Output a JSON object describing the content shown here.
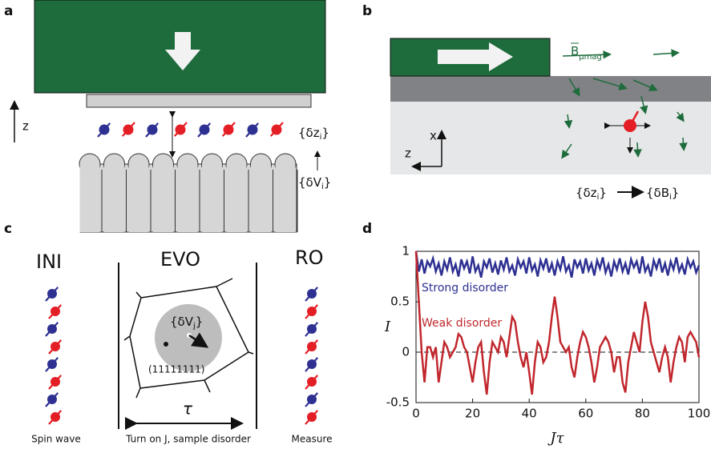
{
  "panels": {
    "a": {
      "letter": "a",
      "axis": "z",
      "dz": {
        "open": "{δz",
        "sub": "i",
        "close": "}"
      },
      "dv": {
        "open": "{δV",
        "sub": "i",
        "close": "}"
      }
    },
    "b": {
      "letter": "b",
      "field": {
        "main": "B",
        "sub": "μmag"
      },
      "axis_x": "x",
      "axis_z": "z",
      "map_from": {
        "open": "{δz",
        "sub": "i",
        "close": "}"
      },
      "map_to": {
        "open": "{δB",
        "sub": "i",
        "close": "}"
      }
    },
    "c": {
      "letter": "c",
      "ini": "INI",
      "evo": "EVO",
      "ro": "RO",
      "disorder": {
        "open": "{δV",
        "sub": "j",
        "close": "}"
      },
      "state": "(11111111)",
      "tau": "τ",
      "ini_caption": "Spin wave",
      "evo_caption": "Turn on J, sample disorder",
      "ro_caption": "Measure"
    },
    "d": {
      "letter": "d"
    }
  },
  "chart_data": {
    "type": "line",
    "xlabel": "Jτ",
    "ylabel": "I",
    "xlim": [
      0,
      100
    ],
    "ylim": [
      -0.5,
      1
    ],
    "xticks": [
      0,
      20,
      40,
      60,
      80,
      100
    ],
    "yticks": [
      -0.5,
      0,
      0.5,
      1
    ],
    "reference_line": 0,
    "x": [
      0,
      1,
      2,
      3,
      4,
      5,
      6,
      7,
      8,
      9,
      10,
      11,
      12,
      13,
      14,
      15,
      16,
      17,
      18,
      19,
      20,
      21,
      22,
      23,
      24,
      25,
      26,
      27,
      28,
      29,
      30,
      31,
      32,
      33,
      34,
      35,
      36,
      37,
      38,
      39,
      40,
      41,
      42,
      43,
      44,
      45,
      46,
      47,
      48,
      49,
      50,
      51,
      52,
      53,
      54,
      55,
      56,
      57,
      58,
      59,
      60,
      61,
      62,
      63,
      64,
      65,
      66,
      67,
      68,
      69,
      70,
      71,
      72,
      73,
      74,
      75,
      76,
      77,
      78,
      79,
      80,
      81,
      82,
      83,
      84,
      85,
      86,
      87,
      88,
      89,
      90,
      91,
      92,
      93,
      94,
      95,
      96,
      97,
      98,
      99,
      100
    ],
    "series": [
      {
        "name": "Strong disorder",
        "color": "#2e3192",
        "values": [
          1,
          0.8,
          0.92,
          0.78,
          0.9,
          0.85,
          0.93,
          0.8,
          0.88,
          0.76,
          0.9,
          0.82,
          0.94,
          0.8,
          0.87,
          0.75,
          0.92,
          0.83,
          0.9,
          0.78,
          0.95,
          0.8,
          0.86,
          0.74,
          0.9,
          0.84,
          0.93,
          0.79,
          0.88,
          0.77,
          0.91,
          0.82,
          0.94,
          0.8,
          0.86,
          0.76,
          0.92,
          0.84,
          0.9,
          0.78,
          0.94,
          0.81,
          0.87,
          0.75,
          0.91,
          0.83,
          0.93,
          0.79,
          0.88,
          0.76,
          0.9,
          0.82,
          0.95,
          0.8,
          0.86,
          0.74,
          0.92,
          0.84,
          0.9,
          0.78,
          0.93,
          0.81,
          0.88,
          0.76,
          0.91,
          0.83,
          0.94,
          0.79,
          0.87,
          0.75,
          0.9,
          0.82,
          0.93,
          0.8,
          0.88,
          0.77,
          0.92,
          0.84,
          0.9,
          0.78,
          0.95,
          0.8,
          0.86,
          0.75,
          0.91,
          0.83,
          0.93,
          0.79,
          0.88,
          0.76,
          0.9,
          0.82,
          0.94,
          0.8,
          0.87,
          0.77,
          0.92,
          0.84,
          0.9,
          0.79,
          0.86
        ]
      },
      {
        "name": "Weak disorder",
        "color": "#c1272d",
        "values": [
          1,
          0.5,
          0,
          -0.3,
          0.05,
          0.05,
          -0.05,
          0.05,
          -0.3,
          -0.1,
          0.1,
          0.05,
          -0.05,
          0,
          0.05,
          0.18,
          0.15,
          0.05,
          0,
          -0.15,
          -0.3,
          -0.1,
          0.05,
          0.1,
          -0.2,
          -0.42,
          -0.1,
          0.1,
          0.05,
          0,
          0.15,
          0.1,
          -0.05,
          0.15,
          0.35,
          0.3,
          0.1,
          -0.05,
          -0.15,
          0,
          -0.2,
          -0.42,
          -0.1,
          0.1,
          0.05,
          -0.1,
          -0.05,
          0.1,
          0.35,
          0.55,
          0.35,
          0.1,
          0.05,
          0,
          0.05,
          -0.15,
          -0.25,
          -0.05,
          0.1,
          0.2,
          0.15,
          0.05,
          -0.1,
          -0.3,
          -0.15,
          0.05,
          0.1,
          0.15,
          0.1,
          0,
          -0.2,
          -0.05,
          -0.05,
          -0.3,
          -0.4,
          -0.1,
          0.05,
          0.2,
          0.1,
          0,
          0.3,
          0.5,
          0.35,
          0.1,
          0,
          -0.1,
          -0.2,
          -0.05,
          0.05,
          -0.05,
          -0.3,
          -0.1,
          0.05,
          0.15,
          0.1,
          -0.1,
          0.15,
          0.2,
          0.15,
          0.1,
          -0.05
        ]
      }
    ]
  }
}
